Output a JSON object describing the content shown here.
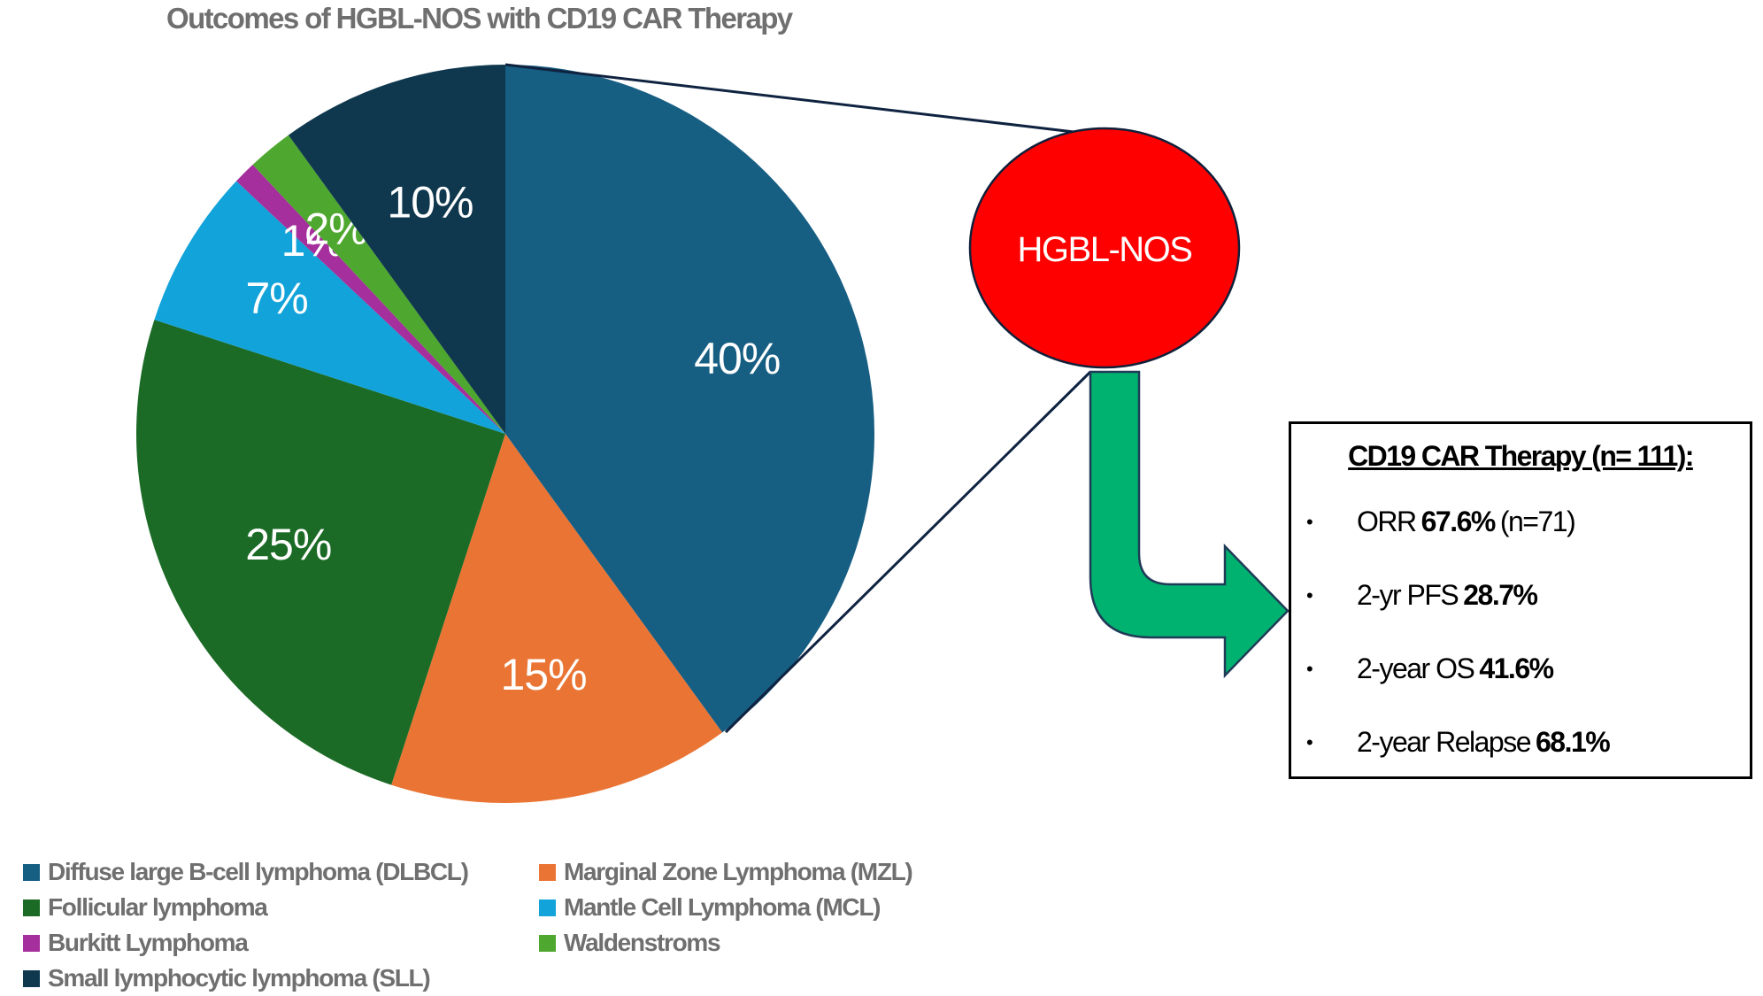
{
  "chart_data": {
    "type": "pie",
    "title": "Outcomes of HGBL-NOS with CD19 CAR Therapy",
    "slices": [
      {
        "name": "Diffuse large B-cell lymphoma (DLBCL)",
        "value": 40,
        "label": "40%",
        "color": "#175e83"
      },
      {
        "name": "Marginal Zone Lymphoma (MZL)",
        "value": 15,
        "label": "15%",
        "color": "#ea7434"
      },
      {
        "name": "Follicular lymphoma",
        "value": 25,
        "label": "25%",
        "color": "#1b6b26"
      },
      {
        "name": "Mantle Cell Lymphoma (MCL)",
        "value": 7,
        "label": "7%",
        "color": "#11a3d9"
      },
      {
        "name": "Burkitt Lymphoma",
        "value": 1,
        "label": "1%",
        "color": "#a52f9c"
      },
      {
        "name": "Waldenstroms",
        "value": 2,
        "label": "2%",
        "color": "#4ea72e"
      },
      {
        "name": "Small lymphocytic lymphoma (SLL)",
        "value": 10,
        "label": "10%",
        "color": "#0f384e"
      }
    ],
    "legend_placement": "bottom"
  },
  "callout": {
    "label": "HGBL-NOS",
    "color": "#ff0000",
    "arrow_color": "#00b26f"
  },
  "results": {
    "title": "CD19 CAR Therapy (n= 111):",
    "items": [
      {
        "label": "ORR",
        "value": "67.6%",
        "note": "(n=71)"
      },
      {
        "label": "2-yr PFS",
        "value": "28.7%",
        "note": ""
      },
      {
        "label": "2-year OS",
        "value": "41.6%",
        "note": ""
      },
      {
        "label": "2-year Relapse",
        "value": "68.1%",
        "note": ""
      }
    ]
  }
}
